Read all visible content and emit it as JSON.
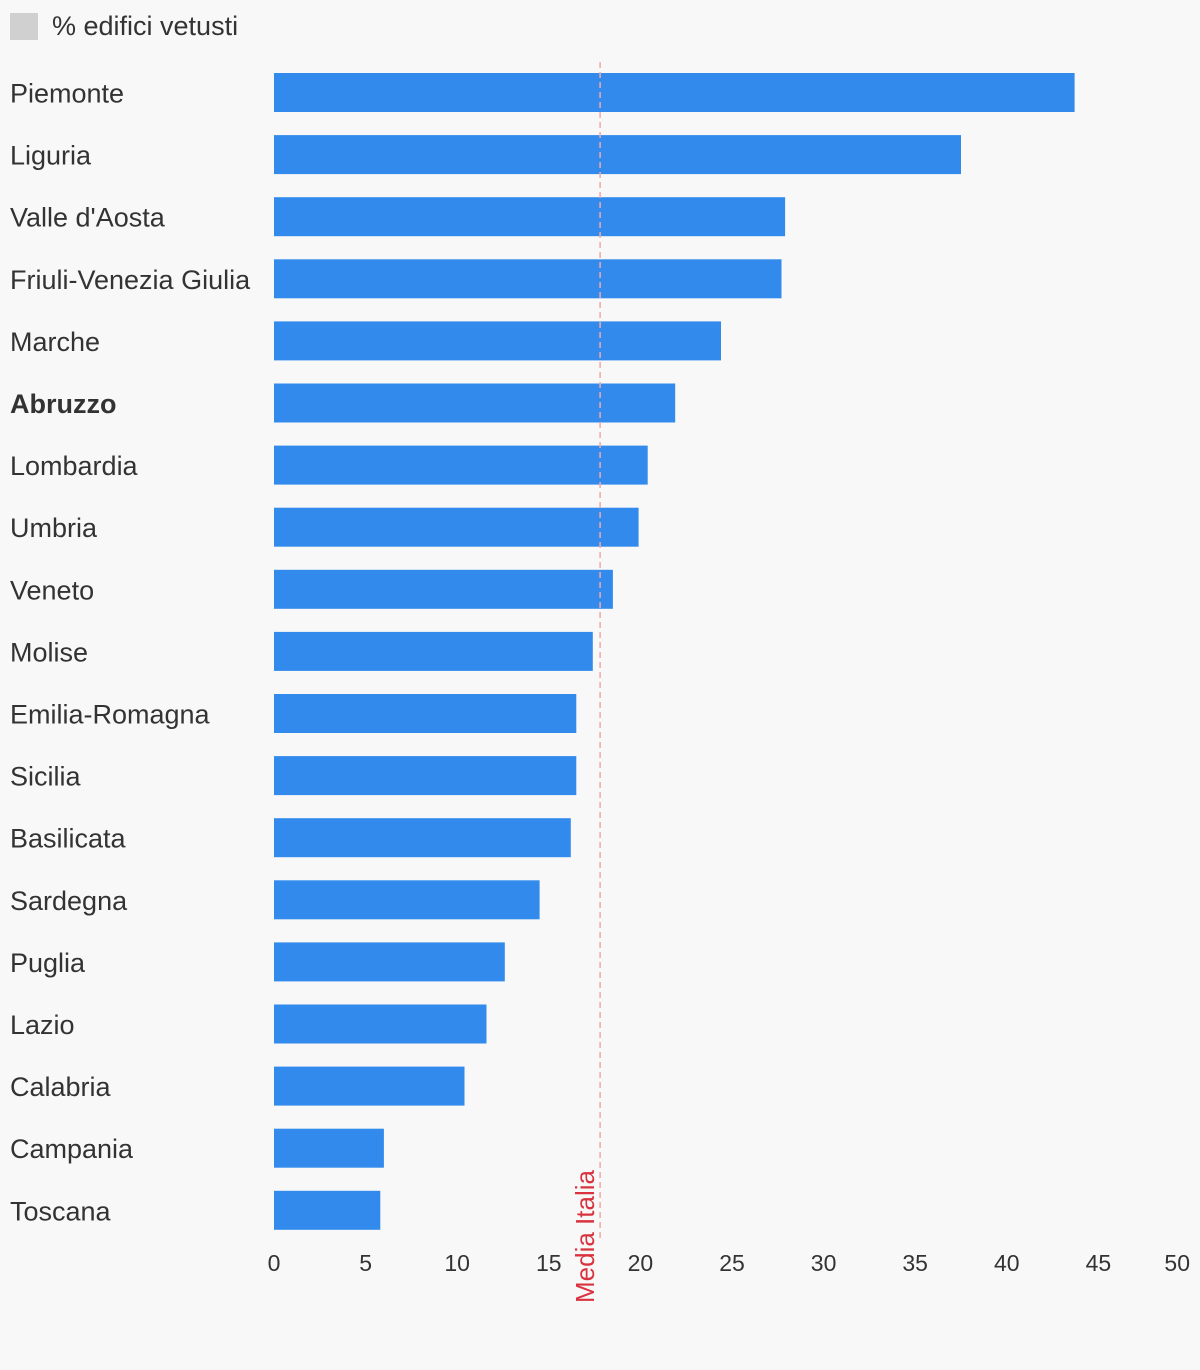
{
  "chart_data": {
    "type": "bar",
    "orientation": "horizontal",
    "legend": {
      "label": "% edifici vetusti",
      "swatch_color": "#d0d0d0",
      "placement": "top-left"
    },
    "bar_color": "#328bec",
    "categories": [
      "Piemonte",
      "Liguria",
      "Valle d'Aosta",
      "Friuli-Venezia Giulia",
      "Marche",
      "Abruzzo",
      "Lombardia",
      "Umbria",
      "Veneto",
      "Molise",
      "Emilia-Romagna",
      "Sicilia",
      "Basilicata",
      "Sardegna",
      "Puglia",
      "Lazio",
      "Calabria",
      "Campania",
      "Toscana"
    ],
    "highlighted_category": "Abruzzo",
    "values": [
      43.7,
      37.5,
      27.9,
      27.7,
      24.4,
      21.9,
      20.4,
      19.9,
      18.5,
      17.4,
      16.5,
      16.5,
      16.2,
      14.5,
      12.6,
      11.6,
      10.4,
      6.0,
      5.8
    ],
    "x_ticks": [
      0,
      5,
      10,
      15,
      20,
      25,
      30,
      35,
      40,
      45,
      50
    ],
    "xlim": [
      0,
      50
    ],
    "reference_line": {
      "label": "Media Italia",
      "value": 17.8,
      "color": "#d9333f",
      "style": "dashed"
    },
    "grid": false
  }
}
